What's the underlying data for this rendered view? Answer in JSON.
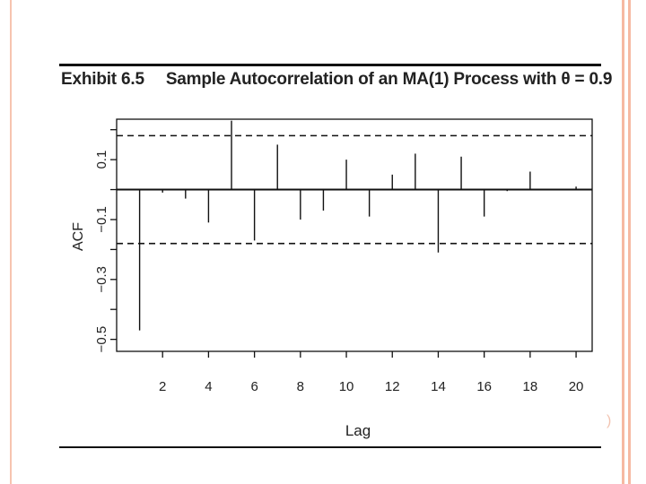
{
  "exhibit": {
    "label": "Exhibit 6.5",
    "title": "Sample Autocorrelation of an MA(1) Process with θ = 0.9"
  },
  "colors": {
    "frame_stripe": "#f6b9a2",
    "ink": "#111111"
  },
  "chart_data": {
    "type": "bar",
    "title": "Sample Autocorrelation of an MA(1) Process with θ = 0.9",
    "xlabel": "Lag",
    "ylabel": "ACF",
    "xlim": [
      0,
      20.7
    ],
    "ylim": [
      -0.54,
      0.235
    ],
    "x_ticks": [
      2,
      4,
      6,
      8,
      10,
      12,
      14,
      16,
      18,
      20
    ],
    "y_ticks": [
      -0.5,
      -0.3,
      -0.1,
      0.1
    ],
    "x_tick_labels": [
      "2",
      "4",
      "6",
      "8",
      "10",
      "12",
      "14",
      "16",
      "18",
      "20"
    ],
    "y_tick_labels": [
      "−0.5",
      "−0.3",
      "−0.1",
      "0.1"
    ],
    "confidence_bound": 0.18,
    "lags": [
      1,
      2,
      3,
      4,
      5,
      6,
      7,
      8,
      9,
      10,
      11,
      12,
      13,
      14,
      15,
      16,
      17,
      18,
      19,
      20
    ],
    "acf": [
      -0.47,
      -0.01,
      -0.03,
      -0.11,
      0.23,
      -0.17,
      0.15,
      -0.1,
      -0.07,
      0.1,
      -0.09,
      0.05,
      0.12,
      -0.21,
      0.11,
      -0.09,
      -0.005,
      0.06,
      0.0,
      0.01
    ],
    "grid": false,
    "legend": "none"
  },
  "page": {
    "corner_mark": ")"
  }
}
